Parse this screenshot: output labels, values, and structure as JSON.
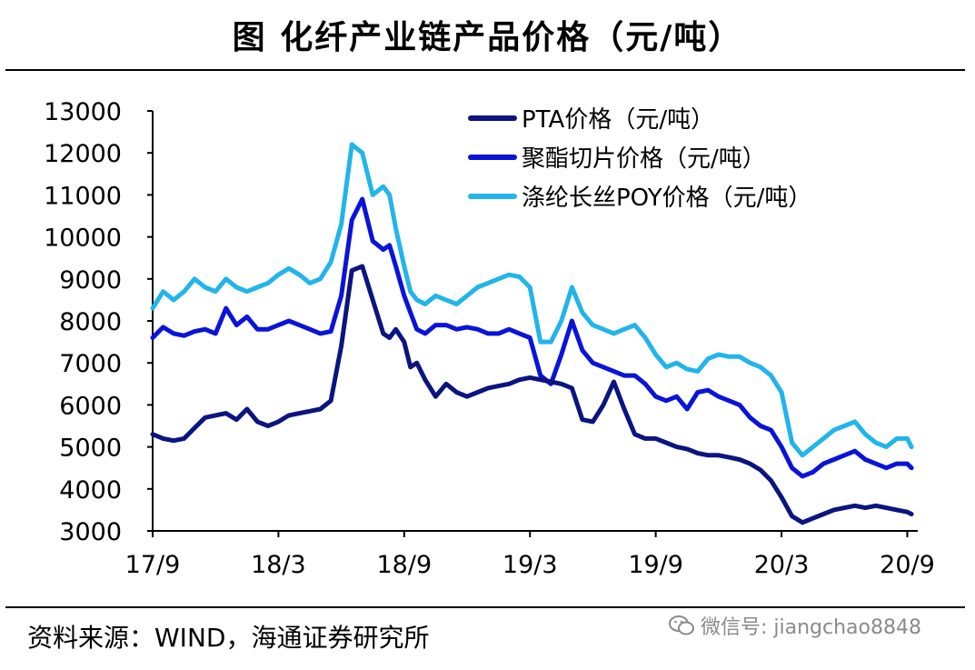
{
  "title": "图  化纤产业链产品价格（元/吨）",
  "source": "资料来源：WIND，海通证券研究所",
  "watermark": "微信号: jiangchao8848",
  "chart_data": {
    "type": "line",
    "title": "图  化纤产业链产品价格（元/吨）",
    "xlabel": "",
    "ylabel": "",
    "ylim": [
      3000,
      13000
    ],
    "yticks": [
      3000,
      4000,
      5000,
      6000,
      7000,
      8000,
      9000,
      10000,
      11000,
      12000,
      13000
    ],
    "xlim": [
      0,
      36.5
    ],
    "xticks": [
      {
        "pos": 0,
        "label": "17/9"
      },
      {
        "pos": 6,
        "label": "18/3"
      },
      {
        "pos": 12,
        "label": "18/9"
      },
      {
        "pos": 18,
        "label": "19/3"
      },
      {
        "pos": 24,
        "label": "19/9"
      },
      {
        "pos": 30,
        "label": "20/3"
      },
      {
        "pos": 36,
        "label": "20/9"
      }
    ],
    "legend_position": "top-right",
    "series": [
      {
        "name": "PTA价格（元/吨）",
        "color": "#0b1480",
        "x": [
          0,
          0.5,
          1,
          1.5,
          2,
          2.5,
          3,
          3.5,
          4,
          4.5,
          5,
          5.5,
          6,
          6.5,
          7,
          7.5,
          8,
          8.5,
          9,
          9.5,
          10,
          10.5,
          11,
          11.3,
          11.6,
          12,
          12.3,
          12.6,
          13,
          13.5,
          14,
          14.5,
          15,
          15.5,
          16,
          16.5,
          17,
          17.5,
          18,
          18.5,
          19,
          19.5,
          20,
          20.5,
          21,
          21.5,
          22,
          22.5,
          23,
          23.5,
          24,
          24.5,
          25,
          25.5,
          26,
          26.5,
          27,
          27.5,
          28,
          28.5,
          29,
          29.5,
          30,
          30.5,
          31,
          31.5,
          32,
          32.5,
          33,
          33.5,
          34,
          34.5,
          35,
          35.5,
          36,
          36.2
        ],
        "values": [
          5300,
          5200,
          5150,
          5200,
          5450,
          5700,
          5750,
          5800,
          5650,
          5900,
          5600,
          5500,
          5600,
          5750,
          5800,
          5850,
          5900,
          6100,
          7400,
          9200,
          9300,
          8500,
          7700,
          7600,
          7800,
          7500,
          6900,
          7000,
          6600,
          6200,
          6500,
          6300,
          6200,
          6300,
          6400,
          6450,
          6500,
          6600,
          6650,
          6600,
          6550,
          6500,
          6400,
          5650,
          5600,
          6000,
          6550,
          5900,
          5300,
          5200,
          5200,
          5100,
          5000,
          4950,
          4850,
          4800,
          4800,
          4750,
          4700,
          4600,
          4450,
          4200,
          3800,
          3350,
          3200,
          3300,
          3400,
          3500,
          3550,
          3600,
          3550,
          3600,
          3550,
          3500,
          3450,
          3400
        ]
      },
      {
        "name": "聚酯切片价格（元/吨）",
        "color": "#0a14d8",
        "x": [
          0,
          0.5,
          1,
          1.5,
          2,
          2.5,
          3,
          3.5,
          4,
          4.5,
          5,
          5.5,
          6,
          6.5,
          7,
          7.5,
          8,
          8.5,
          9,
          9.5,
          10,
          10.5,
          11,
          11.3,
          11.6,
          12,
          12.3,
          12.6,
          13,
          13.5,
          14,
          14.5,
          15,
          15.5,
          16,
          16.5,
          17,
          17.5,
          18,
          18.5,
          19,
          19.5,
          20,
          20.5,
          21,
          21.5,
          22,
          22.5,
          23,
          23.5,
          24,
          24.5,
          25,
          25.5,
          26,
          26.5,
          27,
          27.5,
          28,
          28.5,
          29,
          29.5,
          30,
          30.5,
          31,
          31.5,
          32,
          32.5,
          33,
          33.5,
          34,
          34.5,
          35,
          35.5,
          36,
          36.2
        ],
        "values": [
          7600,
          7850,
          7700,
          7650,
          7750,
          7800,
          7700,
          8300,
          7900,
          8100,
          7800,
          7800,
          7900,
          8000,
          7900,
          7800,
          7700,
          7750,
          8600,
          10400,
          10900,
          9900,
          9700,
          9800,
          9300,
          8600,
          8200,
          7800,
          7700,
          7900,
          7900,
          7800,
          7850,
          7800,
          7700,
          7700,
          7800,
          7700,
          7600,
          6700,
          6500,
          7200,
          8000,
          7300,
          7000,
          6900,
          6800,
          6700,
          6700,
          6500,
          6200,
          6100,
          6200,
          5900,
          6300,
          6350,
          6200,
          6100,
          6000,
          5700,
          5500,
          5400,
          5000,
          4500,
          4300,
          4400,
          4600,
          4700,
          4800,
          4900,
          4700,
          4600,
          4500,
          4600,
          4600,
          4500
        ]
      },
      {
        "name": "涤纶长丝POY价格（元/吨）",
        "color": "#22b4ea",
        "x": [
          0,
          0.5,
          1,
          1.5,
          2,
          2.5,
          3,
          3.5,
          4,
          4.5,
          5,
          5.5,
          6,
          6.5,
          7,
          7.5,
          8,
          8.5,
          9,
          9.5,
          10,
          10.5,
          11,
          11.3,
          11.6,
          12,
          12.3,
          12.6,
          13,
          13.5,
          14,
          14.5,
          15,
          15.5,
          16,
          16.5,
          17,
          17.5,
          18,
          18.5,
          19,
          19.5,
          20,
          20.5,
          21,
          21.5,
          22,
          22.5,
          23,
          23.5,
          24,
          24.5,
          25,
          25.5,
          26,
          26.5,
          27,
          27.5,
          28,
          28.5,
          29,
          29.5,
          30,
          30.5,
          31,
          31.5,
          32,
          32.5,
          33,
          33.5,
          34,
          34.5,
          35,
          35.5,
          36,
          36.2
        ],
        "values": [
          8300,
          8700,
          8500,
          8700,
          9000,
          8800,
          8700,
          9000,
          8800,
          8700,
          8800,
          8900,
          9100,
          9250,
          9100,
          8900,
          9000,
          9400,
          10300,
          12200,
          12000,
          11000,
          11200,
          11000,
          10200,
          9300,
          8700,
          8500,
          8400,
          8600,
          8500,
          8400,
          8600,
          8800,
          8900,
          9000,
          9100,
          9050,
          8800,
          7500,
          7500,
          8000,
          8800,
          8200,
          7900,
          7800,
          7700,
          7800,
          7900,
          7600,
          7200,
          6900,
          7000,
          6850,
          6800,
          7100,
          7200,
          7150,
          7150,
          7000,
          6900,
          6700,
          6300,
          5100,
          4800,
          5000,
          5200,
          5400,
          5500,
          5600,
          5300,
          5100,
          5000,
          5200,
          5200,
          5000
        ]
      }
    ]
  }
}
